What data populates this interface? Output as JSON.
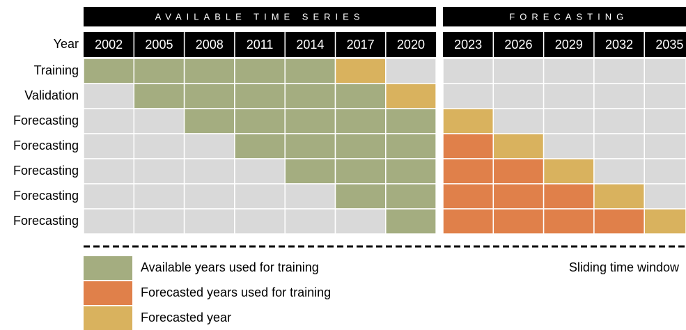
{
  "sections": [
    {
      "title": "AVAILABLE TIME SERIES",
      "years": [
        "2002",
        "2005",
        "2008",
        "2011",
        "2014",
        "2017",
        "2020"
      ]
    },
    {
      "title": "FORECASTING",
      "years": [
        "2023",
        "2026",
        "2029",
        "2032",
        "2035"
      ]
    }
  ],
  "year_label": "Year",
  "rows": [
    {
      "label": "Training",
      "cells": [
        "#a4ad80",
        "#a4ad80",
        "#a4ad80",
        "#a4ad80",
        "#a4ad80",
        "#d9b25e",
        "#d9d9d9",
        "#d9d9d9",
        "#d9d9d9",
        "#d9d9d9",
        "#d9d9d9",
        "#d9d9d9"
      ]
    },
    {
      "label": "Validation",
      "cells": [
        "#d9d9d9",
        "#a4ad80",
        "#a4ad80",
        "#a4ad80",
        "#a4ad80",
        "#a4ad80",
        "#d9b25e",
        "#d9d9d9",
        "#d9d9d9",
        "#d9d9d9",
        "#d9d9d9",
        "#d9d9d9"
      ]
    },
    {
      "label": "Forecasting",
      "cells": [
        "#d9d9d9",
        "#d9d9d9",
        "#a4ad80",
        "#a4ad80",
        "#a4ad80",
        "#a4ad80",
        "#a4ad80",
        "#d9b25e",
        "#d9d9d9",
        "#d9d9d9",
        "#d9d9d9",
        "#d9d9d9"
      ]
    },
    {
      "label": "Forecasting",
      "cells": [
        "#d9d9d9",
        "#d9d9d9",
        "#d9d9d9",
        "#a4ad80",
        "#a4ad80",
        "#a4ad80",
        "#a4ad80",
        "#e0804a",
        "#d9b25e",
        "#d9d9d9",
        "#d9d9d9",
        "#d9d9d9"
      ]
    },
    {
      "label": "Forecasting",
      "cells": [
        "#d9d9d9",
        "#d9d9d9",
        "#d9d9d9",
        "#d9d9d9",
        "#a4ad80",
        "#a4ad80",
        "#a4ad80",
        "#e0804a",
        "#e0804a",
        "#d9b25e",
        "#d9d9d9",
        "#d9d9d9"
      ]
    },
    {
      "label": "Forecasting",
      "cells": [
        "#d9d9d9",
        "#d9d9d9",
        "#d9d9d9",
        "#d9d9d9",
        "#d9d9d9",
        "#a4ad80",
        "#a4ad80",
        "#e0804a",
        "#e0804a",
        "#e0804a",
        "#d9b25e",
        "#d9d9d9"
      ]
    },
    {
      "label": "Forecasting",
      "cells": [
        "#d9d9d9",
        "#d9d9d9",
        "#d9d9d9",
        "#d9d9d9",
        "#d9d9d9",
        "#d9d9d9",
        "#a4ad80",
        "#e0804a",
        "#e0804a",
        "#e0804a",
        "#e0804a",
        "#d9b25e"
      ]
    }
  ],
  "legend": [
    {
      "label": "Available years used for training",
      "color": "#a4ad80"
    },
    {
      "label": "Forecasted years used for training",
      "color": "#e0804a"
    },
    {
      "label": "Forecasted year",
      "color": "#d9b25e"
    }
  ],
  "note": "Sliding time window"
}
